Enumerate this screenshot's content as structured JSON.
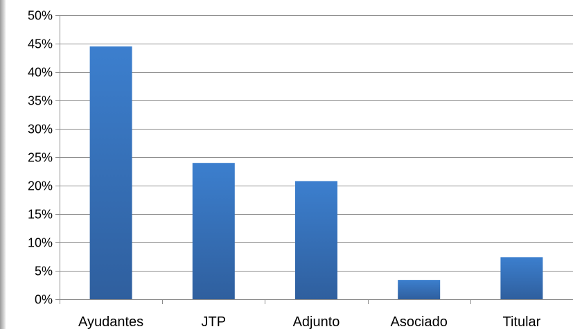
{
  "chart_data": {
    "type": "bar",
    "categories": [
      "Ayudantes",
      "JTP",
      "Adjunto",
      "Asociado",
      "Titular"
    ],
    "values": [
      44.5,
      24.0,
      20.8,
      3.4,
      7.4
    ],
    "ylim": [
      0,
      50
    ],
    "yticks": [
      0,
      5,
      10,
      15,
      20,
      25,
      30,
      35,
      40,
      45,
      50
    ],
    "ytick_labels": [
      "0%",
      "5%",
      "10%",
      "15%",
      "20%",
      "25%",
      "30%",
      "35%",
      "40%",
      "45%",
      "50%"
    ],
    "title": "",
    "xlabel": "",
    "ylabel": "",
    "grid": true,
    "legend": "none",
    "colors": {
      "bar_top": "#3c7fce",
      "bar_bottom": "#2f5f9e",
      "grid": "#8c8c8c",
      "axis": "#8c8c8c"
    }
  }
}
